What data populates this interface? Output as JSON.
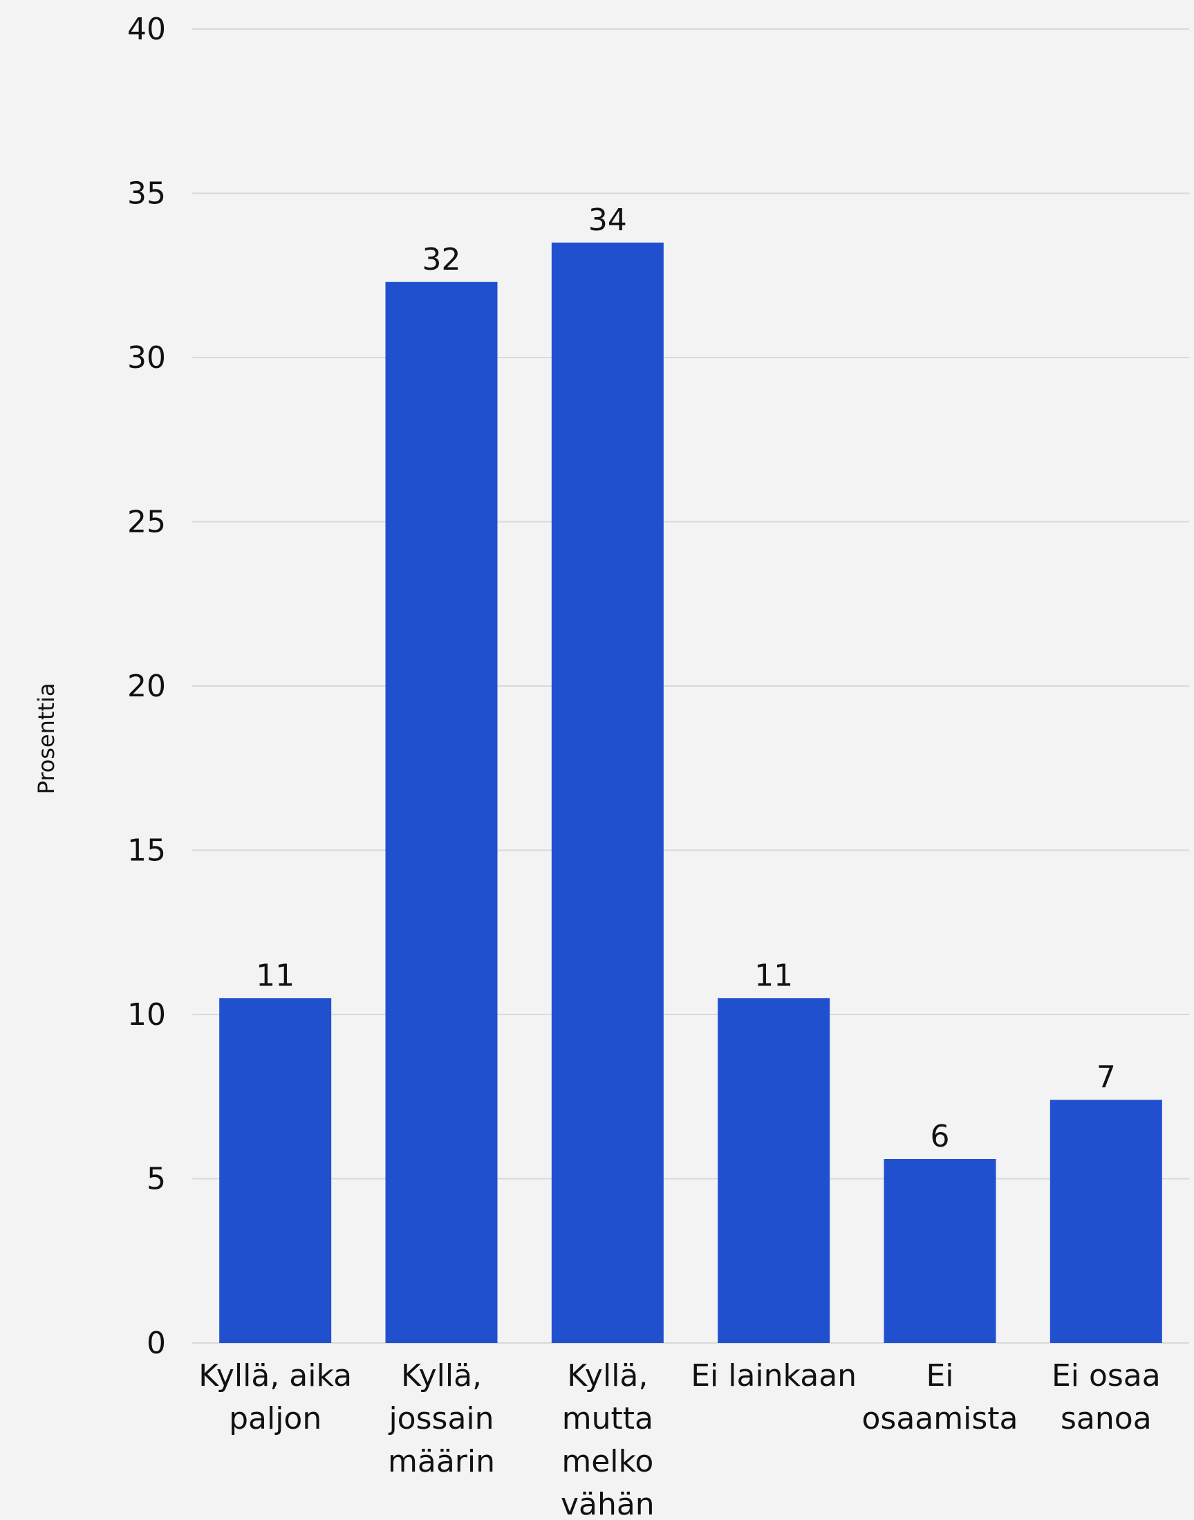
{
  "chart_data": {
    "type": "bar",
    "title": "",
    "xlabel": "",
    "ylabel": "Prosenttia",
    "ylim": [
      0,
      40
    ],
    "yticks": [
      0,
      5,
      10,
      15,
      20,
      25,
      30,
      35,
      40
    ],
    "grid": true,
    "bar_color": "#2150CE",
    "categories": [
      [
        "Kyllä, aika",
        "paljon"
      ],
      [
        "Kyllä,",
        "jossain",
        "määrin"
      ],
      [
        "Kyllä,",
        "mutta",
        "melko",
        "vähän"
      ],
      [
        "Ei lainkaan"
      ],
      [
        "Ei",
        "osaamista"
      ],
      [
        "Ei osaa",
        "sanoa"
      ]
    ],
    "values": [
      10.5,
      32.3,
      33.5,
      10.5,
      5.6,
      7.4
    ],
    "data_labels": [
      "11",
      "32",
      "34",
      "11",
      "6",
      "7"
    ]
  }
}
